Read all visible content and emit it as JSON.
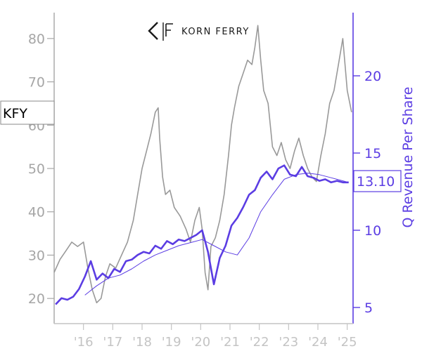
{
  "logo": {
    "text": "KORN FERRY"
  },
  "ticker": "KFY",
  "last_value_label": "13.10",
  "colors": {
    "price": "#999999",
    "revenue": "#5b3de3",
    "axis_left": "#a6a6a6",
    "axis_x": "#c4c4c4"
  },
  "chart_data": {
    "type": "line",
    "title": "",
    "xlabel": "",
    "ylabel_left": "",
    "ylabel_right": "Q Revenue Per Share",
    "x_range": [
      2015.0,
      2025.2
    ],
    "y_left_range": [
      15.0,
      85.0
    ],
    "y_right_range": [
      4.0,
      24.0
    ],
    "y_left_ticks": [
      20,
      30,
      40,
      50,
      60,
      70,
      80
    ],
    "y_right_ticks": [
      5,
      10,
      15,
      20
    ],
    "x_ticks": [
      {
        "x": 2016,
        "label": "'16"
      },
      {
        "x": 2017,
        "label": "'17"
      },
      {
        "x": 2018,
        "label": "'18"
      },
      {
        "x": 2019,
        "label": "'19"
      },
      {
        "x": 2020,
        "label": "'20"
      },
      {
        "x": 2021,
        "label": "'21"
      },
      {
        "x": 2022,
        "label": "'22"
      },
      {
        "x": 2023,
        "label": "'23"
      },
      {
        "x": 2024,
        "label": "'24"
      },
      {
        "x": 2025,
        "label": "'25"
      }
    ],
    "series": [
      {
        "axis": "left",
        "style": "price",
        "x": [
          2015.0,
          2015.2,
          2015.4,
          2015.6,
          2015.8,
          2016.0,
          2016.15,
          2016.3,
          2016.45,
          2016.6,
          2016.75,
          2016.9,
          2017.1,
          2017.3,
          2017.5,
          2017.7,
          2017.85,
          2018.0,
          2018.15,
          2018.3,
          2018.45,
          2018.55,
          2018.6,
          2018.7,
          2018.8,
          2018.95,
          2019.1,
          2019.3,
          2019.5,
          2019.65,
          2019.8,
          2019.95,
          2020.05,
          2020.15,
          2020.25,
          2020.35,
          2020.5,
          2020.65,
          2020.8,
          2020.95,
          2021.05,
          2021.15,
          2021.3,
          2021.45,
          2021.6,
          2021.75,
          2021.85,
          2021.95,
          2022.05,
          2022.15,
          2022.3,
          2022.45,
          2022.6,
          2022.75,
          2022.9,
          2023.05,
          2023.2,
          2023.35,
          2023.5,
          2023.65,
          2023.8,
          2023.95,
          2024.1,
          2024.25,
          2024.4,
          2024.55,
          2024.7,
          2024.85,
          2025.0,
          2025.15
        ],
        "y": [
          26,
          29,
          31,
          33,
          32,
          33,
          27,
          22,
          19,
          20,
          25,
          28,
          27,
          30,
          33,
          38,
          44,
          50,
          54,
          58,
          63,
          64,
          57,
          48,
          44,
          45,
          41,
          39,
          36,
          33,
          38,
          41,
          36,
          26,
          22,
          32,
          34,
          38,
          44,
          53,
          60,
          64,
          69,
          72,
          75,
          74,
          78,
          83,
          75,
          68,
          65,
          55,
          53,
          56,
          52,
          50,
          54,
          57,
          53,
          50,
          48,
          47,
          53,
          58,
          65,
          68,
          74,
          80,
          68,
          63
        ]
      },
      {
        "axis": "right",
        "style": "revenue",
        "x": [
          2015.05,
          2015.25,
          2015.45,
          2015.65,
          2015.85,
          2016.05,
          2016.25,
          2016.45,
          2016.65,
          2016.85,
          2017.05,
          2017.25,
          2017.45,
          2017.65,
          2017.85,
          2018.05,
          2018.25,
          2018.45,
          2018.65,
          2018.85,
          2019.05,
          2019.25,
          2019.45,
          2019.65,
          2019.85,
          2020.05,
          2020.25,
          2020.45,
          2020.65,
          2020.85,
          2021.05,
          2021.25,
          2021.45,
          2021.65,
          2021.85,
          2022.05,
          2022.25,
          2022.45,
          2022.65,
          2022.85,
          2023.05,
          2023.25,
          2023.45,
          2023.65,
          2023.85,
          2024.05,
          2024.25,
          2024.45,
          2024.65,
          2024.85,
          2025.05
        ],
        "y": [
          5.2,
          5.6,
          5.5,
          5.7,
          6.2,
          7.0,
          8.0,
          6.8,
          7.2,
          6.9,
          7.5,
          7.3,
          8.0,
          8.1,
          8.4,
          8.6,
          8.5,
          9.0,
          8.8,
          9.3,
          9.1,
          9.4,
          9.3,
          9.5,
          9.7,
          10.0,
          8.6,
          6.5,
          8.2,
          9.0,
          10.3,
          10.8,
          11.5,
          12.3,
          12.6,
          13.4,
          13.8,
          13.3,
          14.0,
          14.2,
          13.6,
          13.5,
          14.1,
          13.5,
          13.4,
          13.2,
          13.3,
          13.1,
          13.2,
          13.1,
          13.1
        ]
      },
      {
        "axis": "right",
        "style": "revenue-thin",
        "x": [
          2016.05,
          2016.45,
          2016.85,
          2017.25,
          2017.65,
          2018.05,
          2018.45,
          2018.85,
          2019.25,
          2019.65,
          2020.05,
          2020.45,
          2020.85,
          2021.25,
          2021.65,
          2022.05,
          2022.45,
          2022.85,
          2023.25,
          2023.65,
          2024.05,
          2024.45,
          2024.85,
          2025.05
        ],
        "y": [
          5.8,
          6.4,
          6.9,
          7.1,
          7.5,
          8.0,
          8.4,
          8.7,
          9.0,
          9.2,
          9.4,
          9.0,
          8.6,
          8.4,
          9.5,
          11.2,
          12.3,
          13.3,
          13.6,
          13.7,
          13.6,
          13.4,
          13.2,
          13.1
        ]
      }
    ]
  }
}
